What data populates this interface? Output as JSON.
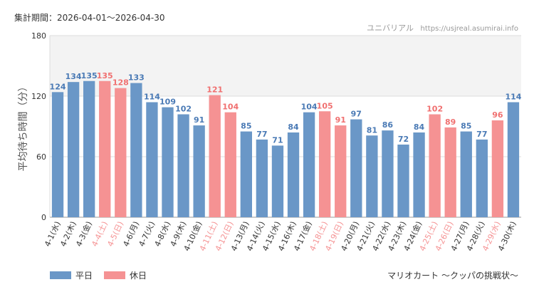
{
  "header": {
    "period": "集計期間：2026-04-01～2026-04-30",
    "site_name": "ユニバリアル",
    "site_url": "https://usjreal.asumirai.info"
  },
  "footer": {
    "attraction": "マリオカート ～クッパの挑戦状～"
  },
  "legend": [
    {
      "label": "平日",
      "color": "#6a97c7"
    },
    {
      "label": "休日",
      "color": "#f59293"
    }
  ],
  "colors": {
    "weekday": "#6a97c7",
    "holiday": "#f59293",
    "weekday_label": "#4a7ab5",
    "holiday_label": "#f07070",
    "band": "#f3f3f3"
  },
  "chart_data": {
    "type": "bar",
    "ylabel": "平均待ち時間（分）",
    "xlabel": "",
    "ylim": [
      0,
      180
    ],
    "yticks": [
      0,
      60,
      120,
      180
    ],
    "grid": true,
    "legend_position": "bottom-left",
    "shaded_band": [
      120,
      180
    ],
    "categories": [
      "4-1(水)",
      "4-2(木)",
      "4-3(金)",
      "4-4(土)",
      "4-5(日)",
      "4-6(月)",
      "4-7(火)",
      "4-8(水)",
      "4-9(木)",
      "4-10(金)",
      "4-11(土)",
      "4-12(日)",
      "4-13(月)",
      "4-14(火)",
      "4-15(水)",
      "4-16(木)",
      "4-17(金)",
      "4-18(土)",
      "4-19(日)",
      "4-20(月)",
      "4-21(火)",
      "4-22(水)",
      "4-23(木)",
      "4-24(金)",
      "4-25(土)",
      "4-26(日)",
      "4-27(月)",
      "4-28(火)",
      "4-29(水)",
      "4-30(木)"
    ],
    "values": [
      124,
      134,
      135,
      135,
      128,
      133,
      114,
      109,
      102,
      91,
      121,
      104,
      85,
      77,
      71,
      84,
      104,
      105,
      91,
      97,
      81,
      86,
      72,
      84,
      102,
      89,
      85,
      77,
      96,
      114
    ],
    "day_type": [
      "平日",
      "平日",
      "平日",
      "休日",
      "休日",
      "平日",
      "平日",
      "平日",
      "平日",
      "平日",
      "休日",
      "休日",
      "平日",
      "平日",
      "平日",
      "平日",
      "平日",
      "休日",
      "休日",
      "平日",
      "平日",
      "平日",
      "平日",
      "平日",
      "休日",
      "休日",
      "平日",
      "平日",
      "休日",
      "平日"
    ]
  }
}
